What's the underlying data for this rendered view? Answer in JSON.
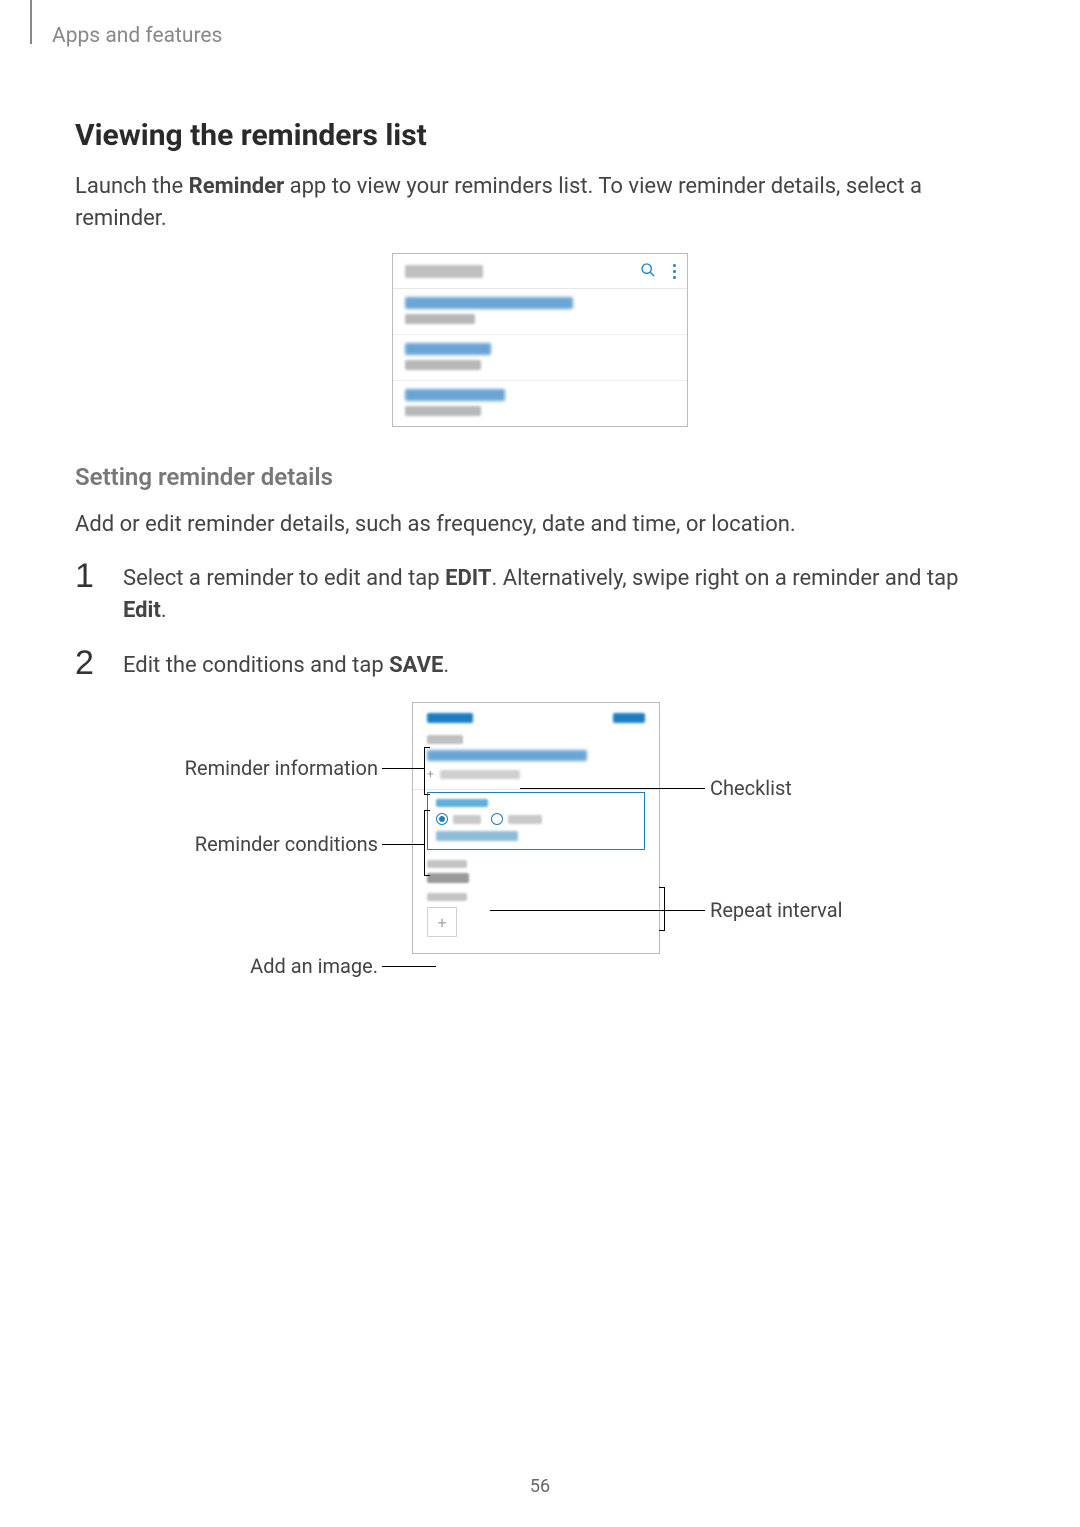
{
  "page": {
    "header": "Apps and features",
    "number": "56"
  },
  "section": {
    "title": "Viewing the reminders list",
    "intro_a": "Launch the ",
    "intro_bold": "Reminder",
    "intro_b": " app to view your reminders list. To view reminder details, select a reminder."
  },
  "subsection": {
    "title": "Setting reminder details",
    "intro": "Add or edit reminder details, such as frequency, date and time, or location."
  },
  "steps": {
    "1": {
      "a": "Select a reminder to edit and tap ",
      "b1": "EDIT",
      "c": ". Alternatively, swipe right on a reminder and tap ",
      "b2": "Edit",
      "d": "."
    },
    "2": {
      "a": "Edit the conditions and tap ",
      "b1": "SAVE",
      "c": "."
    }
  },
  "callouts": {
    "reminder_info": "Reminder information",
    "reminder_cond": "Reminder conditions",
    "add_image": "Add an image.",
    "checklist": "Checklist",
    "repeat": "Repeat interval"
  },
  "shot1": {
    "items": [
      {
        "w1": 168,
        "w2": 70
      },
      {
        "w1": 86,
        "w2": 76
      },
      {
        "w1": 100,
        "w2": 76
      }
    ],
    "icon_color": "#1e88cc"
  },
  "colors": {
    "accent": "#1c7ec2",
    "border": "#bbbbbb",
    "text": "#444444",
    "grey_heading": "#777777"
  }
}
